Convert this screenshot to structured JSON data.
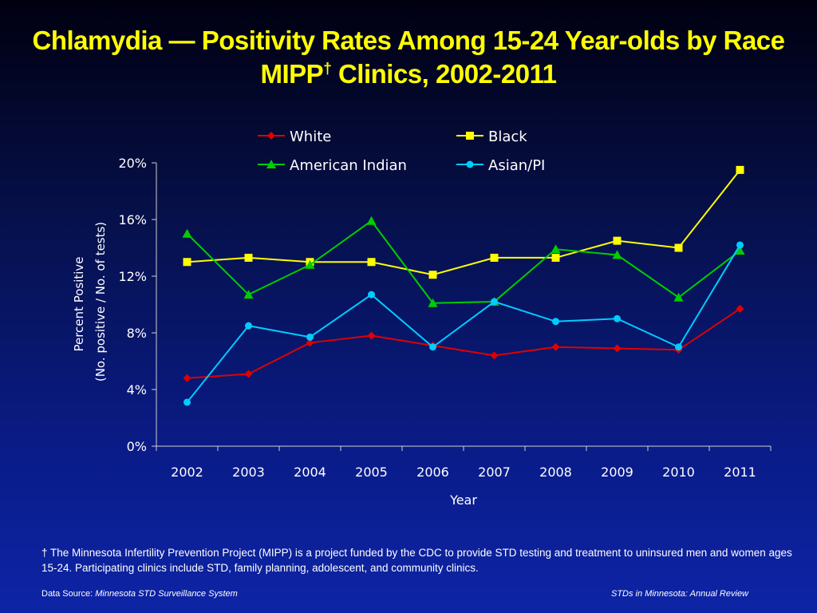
{
  "title": {
    "line1": "Chlamydia — Positivity Rates Among 15-24 Year-olds by Race",
    "line2_pre": "MIPP",
    "line2_sup": "†",
    "line2_post": " Clinics, 2002-2011"
  },
  "chart_data": {
    "type": "line",
    "x": [
      "2002",
      "2003",
      "2004",
      "2005",
      "2006",
      "2007",
      "2008",
      "2009",
      "2010",
      "2011"
    ],
    "xlabel": "Year",
    "ylabel_line1": "Percent Positive",
    "ylabel_line2": "(No. positive / No. of tests)",
    "ylim": [
      0,
      20
    ],
    "yticks": [
      0,
      4,
      8,
      12,
      16,
      20
    ],
    "ytick_labels": [
      "0%",
      "4%",
      "8%",
      "12%",
      "16%",
      "20%"
    ],
    "grid": false,
    "legend_position": "top",
    "series": [
      {
        "name": "White",
        "color": "#e00000",
        "marker": "diamond",
        "values": [
          4.8,
          5.1,
          7.3,
          7.8,
          7.1,
          6.4,
          7.0,
          6.9,
          6.8,
          9.7
        ]
      },
      {
        "name": "Black",
        "color": "#ffff00",
        "marker": "square",
        "values": [
          13.0,
          13.3,
          13.0,
          13.0,
          12.1,
          13.3,
          13.3,
          14.5,
          14.0,
          19.5
        ]
      },
      {
        "name": "American Indian",
        "color": "#00cc00",
        "marker": "triangle",
        "values": [
          15.0,
          10.7,
          12.8,
          15.9,
          10.1,
          10.2,
          13.9,
          13.5,
          10.5,
          13.8
        ]
      },
      {
        "name": "Asian/PI",
        "color": "#00ccff",
        "marker": "circle",
        "values": [
          3.1,
          8.5,
          7.7,
          10.7,
          7.0,
          10.2,
          8.8,
          9.0,
          7.0,
          14.2
        ]
      }
    ]
  },
  "footnote": "† The Minnesota Infertility Prevention Project (MIPP) is a project funded by the CDC to provide STD testing and treatment to uninsured men and women ages 15-24. Participating clinics include STD, family planning, adolescent, and community clinics.",
  "footer": {
    "source_label": "Data Source: ",
    "source_value": "Minnesota STD Surveillance System",
    "right": "STDs in Minnesota: Annual Review"
  }
}
